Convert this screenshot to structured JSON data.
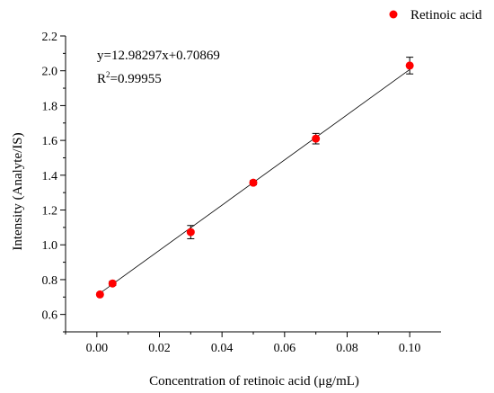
{
  "chart_data": {
    "type": "scatter",
    "xlabel": "Concentration of  retinoic acid (μg/mL)",
    "ylabel": "Intensity (Analyte/IS)",
    "xlim": [
      -0.01,
      0.11
    ],
    "ylim": [
      0.5,
      2.2
    ],
    "x_ticks": [
      "0.00",
      "0.02",
      "0.04",
      "0.06",
      "0.08",
      "0.10"
    ],
    "y_ticks": [
      "0.6",
      "0.8",
      "1.0",
      "1.2",
      "1.4",
      "1.6",
      "1.8",
      "2.0",
      "2.2"
    ],
    "series": [
      {
        "name": "Retinoic acid",
        "color": "#ff0000",
        "x": [
          0.001,
          0.005,
          0.03,
          0.05,
          0.07,
          0.1
        ],
        "y": [
          0.715,
          0.778,
          1.073,
          1.357,
          1.61,
          2.03
        ],
        "err": [
          0.008,
          0.012,
          0.038,
          0.012,
          0.03,
          0.048
        ]
      }
    ],
    "fit": {
      "slope": 12.98297,
      "intercept": 0.70869,
      "x_range": [
        0.0,
        0.1
      ]
    },
    "equation_text": "y=12.98297x+0.70869",
    "r2_text_prefix": "R",
    "r2_text_sup": "2",
    "r2_text_value": "=0.99955",
    "legend_position": "top-right"
  }
}
